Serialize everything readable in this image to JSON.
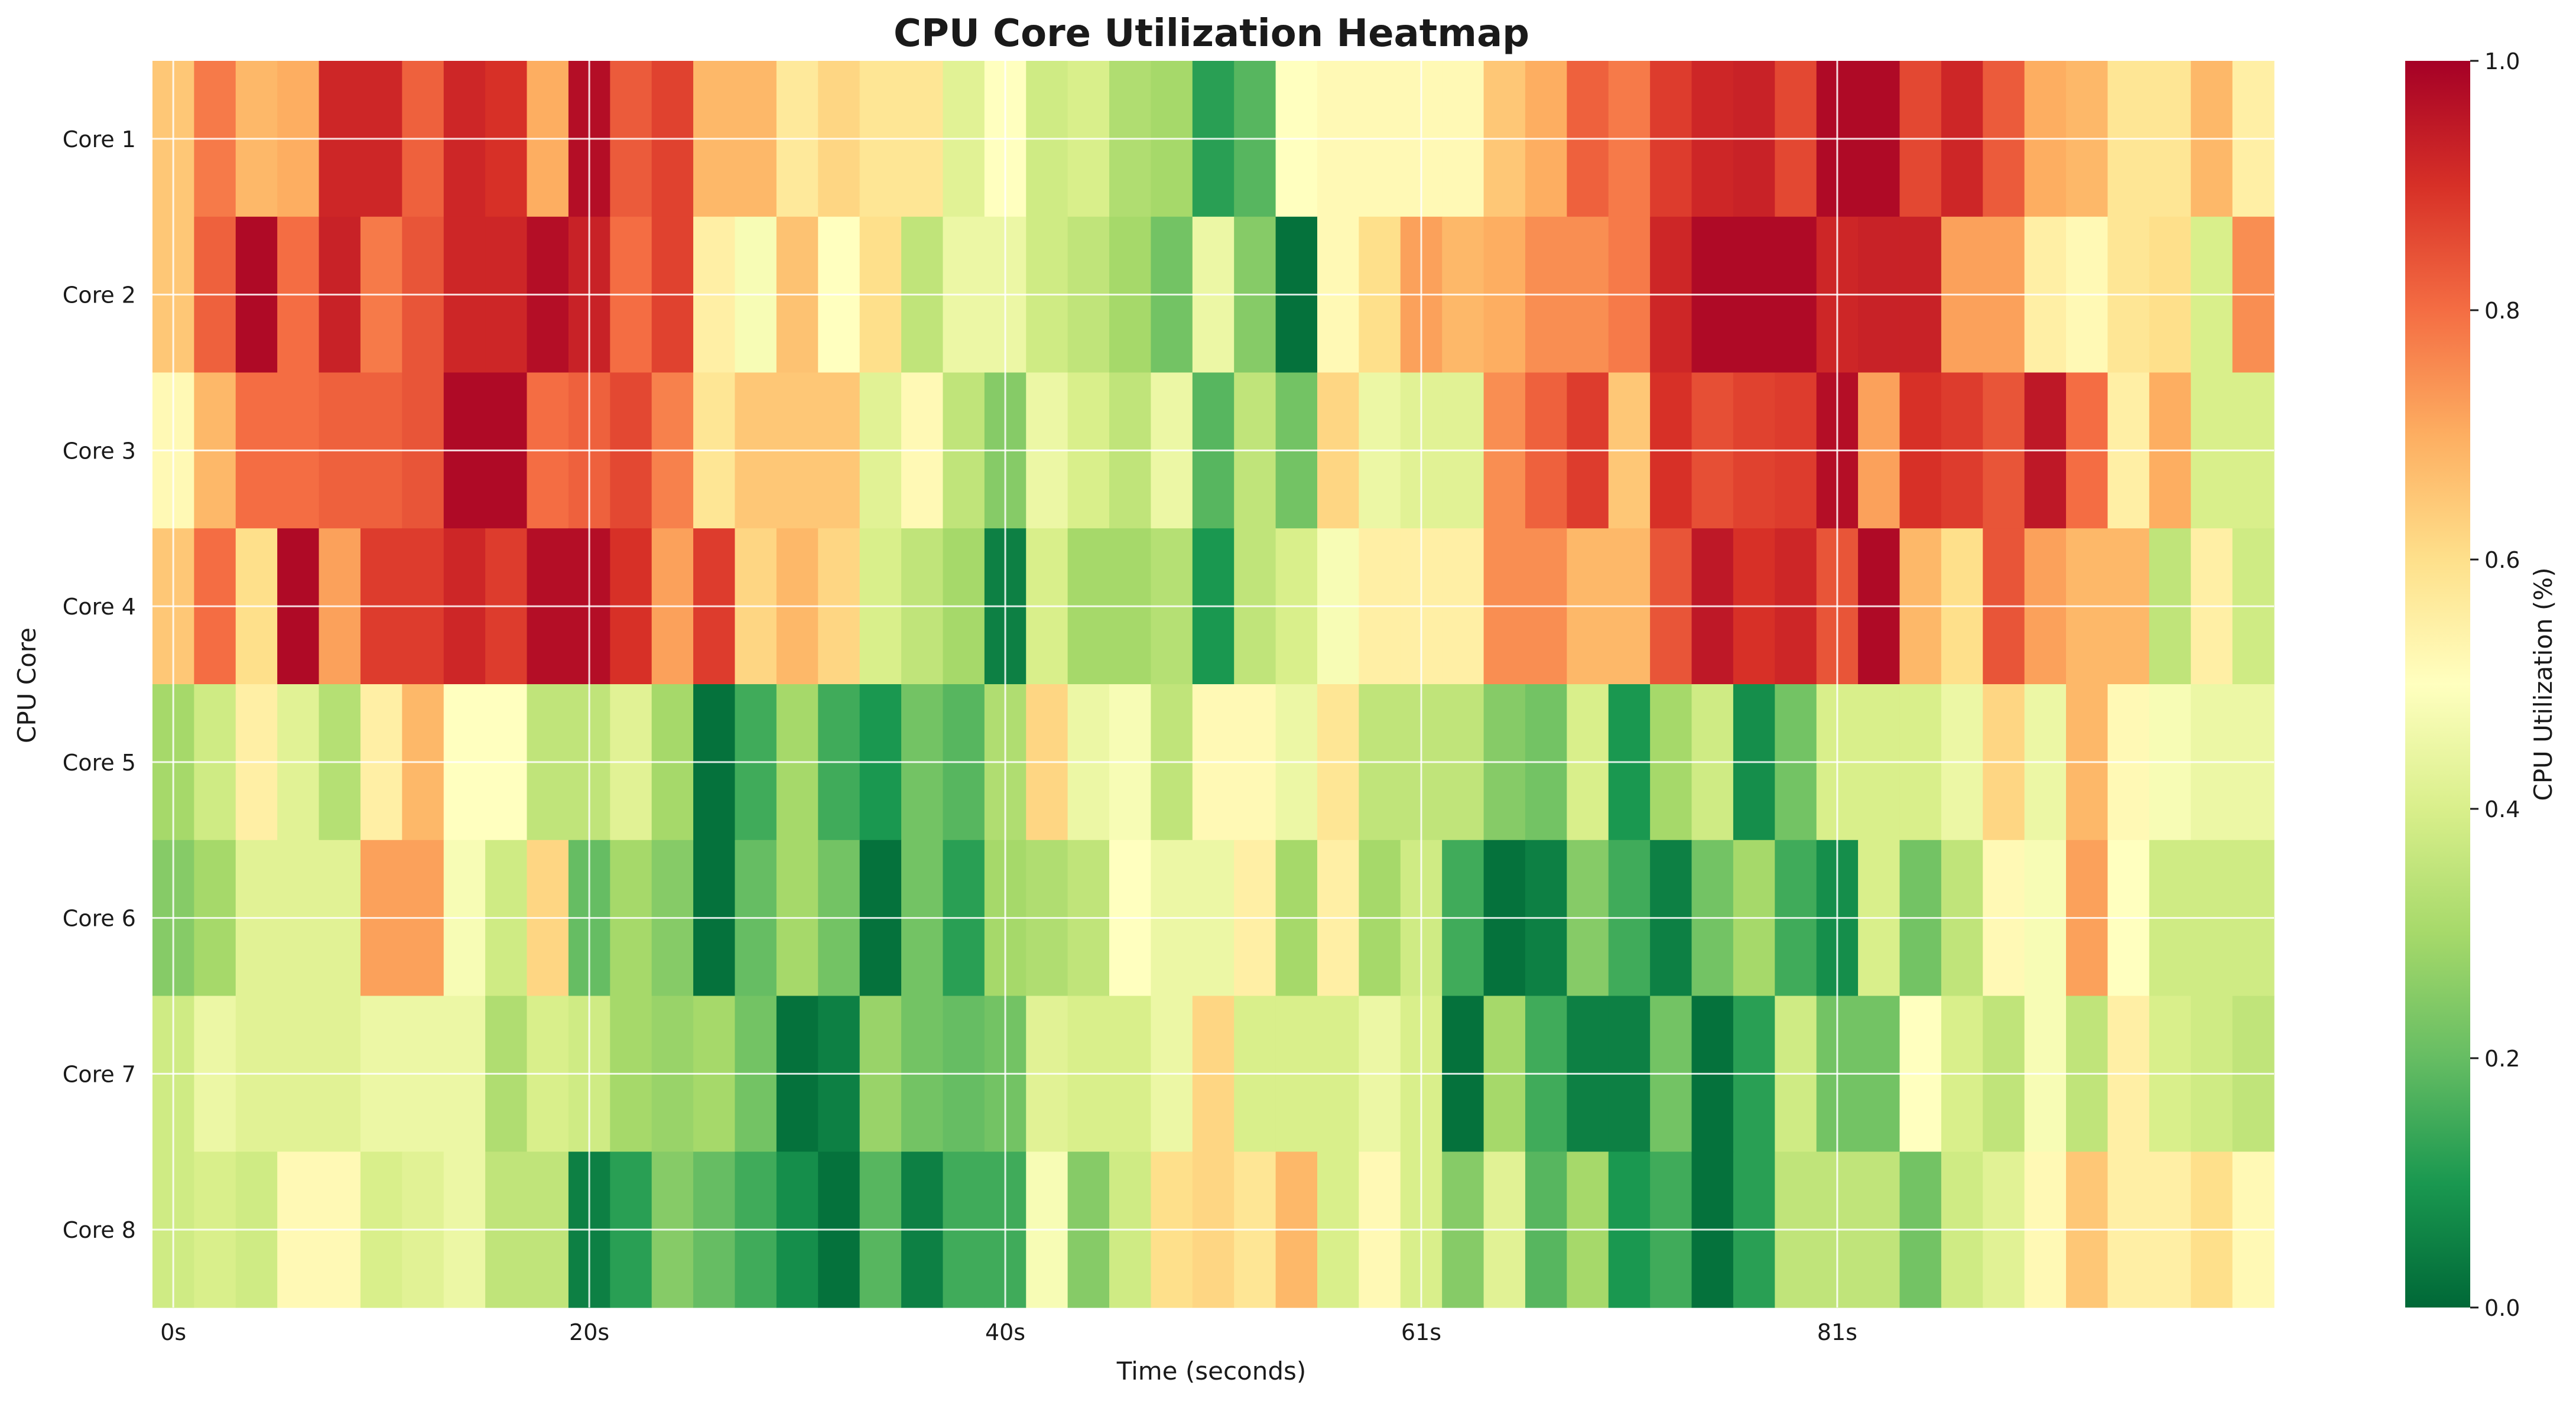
{
  "chart_data": {
    "type": "heatmap",
    "title": "CPU Core Utilization Heatmap",
    "xlabel": "Time (seconds)",
    "ylabel": "CPU Core",
    "colorbar_label": "CPU Utilization (%)",
    "colormap": "RdYlGn_r",
    "colormap_stops": [
      {
        "t": 0.0,
        "color": "#006837"
      },
      {
        "t": 0.1,
        "color": "#1a9850"
      },
      {
        "t": 0.2,
        "color": "#66bd63"
      },
      {
        "t": 0.3,
        "color": "#a6d96a"
      },
      {
        "t": 0.4,
        "color": "#d9ef8b"
      },
      {
        "t": 0.5,
        "color": "#ffffbf"
      },
      {
        "t": 0.6,
        "color": "#fee08b"
      },
      {
        "t": 0.7,
        "color": "#fdae61"
      },
      {
        "t": 0.8,
        "color": "#f46d43"
      },
      {
        "t": 0.9,
        "color": "#d73027"
      },
      {
        "t": 1.0,
        "color": "#a50026"
      }
    ],
    "value_range": [
      0.0,
      1.0
    ],
    "colorbar_ticks": [
      "0.0",
      "0.2",
      "0.4",
      "0.6",
      "0.8",
      "1.0"
    ],
    "x_ticks": [
      {
        "index": 0,
        "label": "0s"
      },
      {
        "index": 10,
        "label": "20s"
      },
      {
        "index": 20,
        "label": "40s"
      },
      {
        "index": 30,
        "label": "61s"
      },
      {
        "index": 40,
        "label": "81s"
      }
    ],
    "grid": true,
    "rows": [
      "Core 1",
      "Core 2",
      "Core 3",
      "Core 4",
      "Core 5",
      "Core 6",
      "Core 7",
      "Core 8"
    ],
    "values": [
      [
        0.65,
        0.78,
        0.68,
        0.7,
        0.92,
        0.92,
        0.82,
        0.92,
        0.9,
        0.7,
        0.97,
        0.83,
        0.87,
        0.68,
        0.68,
        0.57,
        0.62,
        0.58,
        0.58,
        0.42,
        0.5,
        0.38,
        0.4,
        0.32,
        0.3,
        0.12,
        0.18,
        0.5,
        0.52,
        0.52,
        0.52,
        0.52,
        0.65,
        0.7,
        0.82,
        0.78,
        0.88,
        0.92,
        0.93,
        0.86,
        0.98,
        0.98,
        0.86,
        0.92,
        0.83,
        0.7,
        0.68,
        0.58,
        0.58,
        0.68,
        0.55
      ],
      [
        0.65,
        0.82,
        0.98,
        0.8,
        0.93,
        0.78,
        0.84,
        0.92,
        0.92,
        0.97,
        0.93,
        0.8,
        0.87,
        0.55,
        0.48,
        0.66,
        0.5,
        0.6,
        0.35,
        0.45,
        0.45,
        0.38,
        0.35,
        0.3,
        0.22,
        0.45,
        0.25,
        0.02,
        0.52,
        0.6,
        0.72,
        0.68,
        0.7,
        0.75,
        0.75,
        0.78,
        0.92,
        0.98,
        0.98,
        0.98,
        0.92,
        0.93,
        0.93,
        0.72,
        0.72,
        0.55,
        0.52,
        0.58,
        0.6,
        0.4,
        0.75
      ],
      [
        0.52,
        0.68,
        0.8,
        0.8,
        0.82,
        0.82,
        0.84,
        0.98,
        0.98,
        0.8,
        0.82,
        0.86,
        0.77,
        0.58,
        0.65,
        0.65,
        0.65,
        0.42,
        0.52,
        0.35,
        0.25,
        0.45,
        0.4,
        0.35,
        0.45,
        0.18,
        0.35,
        0.22,
        0.62,
        0.45,
        0.42,
        0.42,
        0.75,
        0.82,
        0.88,
        0.65,
        0.9,
        0.85,
        0.87,
        0.88,
        0.97,
        0.72,
        0.9,
        0.88,
        0.84,
        0.95,
        0.8,
        0.55,
        0.7,
        0.4,
        0.4
      ],
      [
        0.65,
        0.8,
        0.6,
        0.98,
        0.72,
        0.88,
        0.88,
        0.92,
        0.88,
        0.97,
        0.97,
        0.9,
        0.72,
        0.88,
        0.62,
        0.68,
        0.62,
        0.4,
        0.35,
        0.3,
        0.05,
        0.4,
        0.3,
        0.3,
        0.33,
        0.1,
        0.35,
        0.4,
        0.48,
        0.55,
        0.55,
        0.55,
        0.75,
        0.75,
        0.68,
        0.68,
        0.84,
        0.95,
        0.9,
        0.92,
        0.84,
        0.98,
        0.68,
        0.6,
        0.84,
        0.72,
        0.68,
        0.68,
        0.35,
        0.55,
        0.38
      ],
      [
        0.3,
        0.38,
        0.55,
        0.42,
        0.33,
        0.55,
        0.68,
        0.5,
        0.5,
        0.35,
        0.35,
        0.42,
        0.3,
        0.02,
        0.15,
        0.3,
        0.15,
        0.1,
        0.22,
        0.18,
        0.32,
        0.62,
        0.45,
        0.48,
        0.35,
        0.52,
        0.52,
        0.45,
        0.58,
        0.35,
        0.35,
        0.35,
        0.25,
        0.22,
        0.4,
        0.1,
        0.3,
        0.38,
        0.08,
        0.22,
        0.4,
        0.4,
        0.4,
        0.45,
        0.62,
        0.45,
        0.68,
        0.52,
        0.48,
        0.45,
        0.45
      ],
      [
        0.25,
        0.3,
        0.42,
        0.42,
        0.42,
        0.72,
        0.72,
        0.48,
        0.38,
        0.62,
        0.2,
        0.3,
        0.25,
        0.02,
        0.2,
        0.3,
        0.22,
        0.02,
        0.22,
        0.12,
        0.3,
        0.32,
        0.35,
        0.5,
        0.45,
        0.45,
        0.55,
        0.3,
        0.55,
        0.3,
        0.38,
        0.15,
        0.02,
        0.05,
        0.25,
        0.15,
        0.05,
        0.22,
        0.3,
        0.15,
        0.08,
        0.4,
        0.22,
        0.35,
        0.52,
        0.48,
        0.72,
        0.5,
        0.38,
        0.38,
        0.38
      ],
      [
        0.38,
        0.45,
        0.42,
        0.42,
        0.42,
        0.45,
        0.45,
        0.45,
        0.32,
        0.4,
        0.38,
        0.3,
        0.28,
        0.3,
        0.22,
        0.02,
        0.05,
        0.28,
        0.22,
        0.2,
        0.22,
        0.42,
        0.4,
        0.4,
        0.45,
        0.62,
        0.4,
        0.4,
        0.4,
        0.45,
        0.4,
        0.02,
        0.3,
        0.15,
        0.05,
        0.05,
        0.22,
        0.02,
        0.12,
        0.38,
        0.22,
        0.22,
        0.5,
        0.4,
        0.35,
        0.48,
        0.35,
        0.55,
        0.4,
        0.38,
        0.35
      ],
      [
        0.38,
        0.4,
        0.38,
        0.52,
        0.52,
        0.4,
        0.42,
        0.45,
        0.35,
        0.35,
        0.05,
        0.12,
        0.25,
        0.2,
        0.15,
        0.08,
        0.02,
        0.18,
        0.05,
        0.15,
        0.15,
        0.48,
        0.25,
        0.38,
        0.6,
        0.62,
        0.58,
        0.68,
        0.4,
        0.52,
        0.4,
        0.25,
        0.42,
        0.18,
        0.3,
        0.1,
        0.15,
        0.02,
        0.12,
        0.35,
        0.35,
        0.35,
        0.22,
        0.38,
        0.42,
        0.52,
        0.65,
        0.55,
        0.55,
        0.6,
        0.52
      ]
    ]
  }
}
